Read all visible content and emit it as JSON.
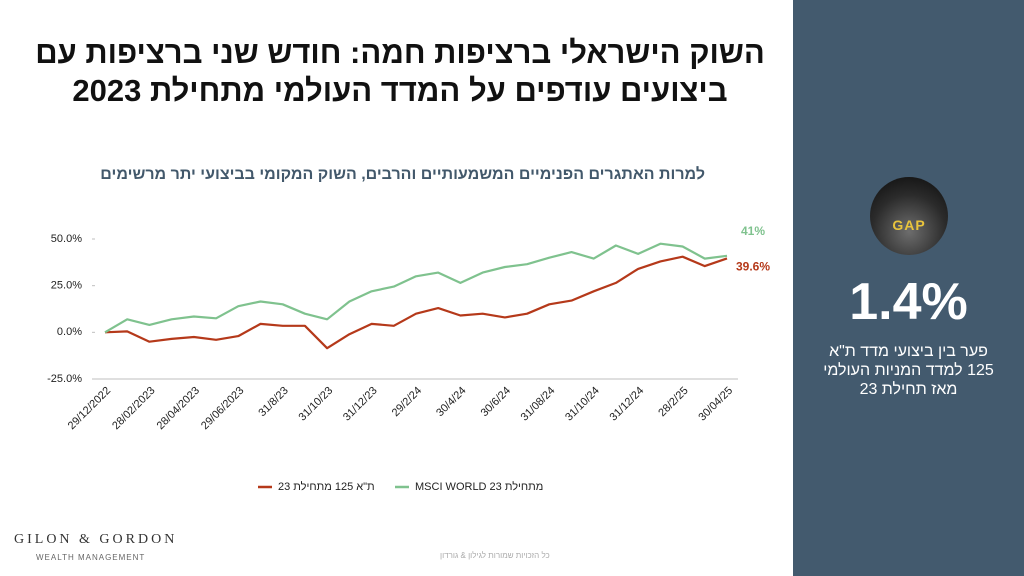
{
  "chart_data": {
    "type": "line",
    "title": "השוק הישראלי ברציפות חמה: חודש שני ברציפות עם ביצועים עודפים על המדד העולמי מתחילת 2023",
    "subtitle": "למרות האתגרים הפנימיים המשמעותיים והרבים, השוק המקומי בביצועי יתר מרשימים",
    "categories": [
      "29/12/2022",
      null,
      "28/02/2023",
      null,
      "28/04/2023",
      null,
      "29/06/2023",
      null,
      "31/8/23",
      null,
      "31/10/23",
      null,
      "31/12/23",
      null,
      "29/2/24",
      null,
      "30/4/24",
      null,
      "30/6/24",
      null,
      "31/08/24",
      null,
      "31/10/24",
      null,
      "31/12/24",
      null,
      "28/2/25",
      null,
      "30/04/25"
    ],
    "series": [
      {
        "name": "ת\"א 125 מתחילת 23",
        "color": "#b5391a",
        "values": [
          0,
          0.5,
          -5,
          -3.5,
          -2.5,
          -4,
          -2,
          4.5,
          3.5,
          3.5,
          -8.5,
          -1,
          4.5,
          3.5,
          10,
          13,
          9,
          10,
          8,
          10,
          15,
          17,
          22,
          26.5,
          34,
          38,
          40.5,
          35.5,
          39.6
        ],
        "value_labels": [
          null,
          null,
          null,
          null,
          null,
          null,
          null,
          null,
          null,
          null,
          null,
          null,
          null,
          null,
          null,
          null,
          null,
          null,
          null,
          null,
          null,
          null,
          null,
          null,
          null,
          null,
          null,
          null,
          "39.6%"
        ]
      },
      {
        "name": "מתחילת MSCI WORLD 23",
        "color": "#7fc28e",
        "values": [
          0,
          7,
          4,
          7,
          8.5,
          7.5,
          14,
          16.5,
          15,
          10,
          7,
          16.5,
          22,
          24.5,
          30,
          32,
          26.5,
          32,
          35,
          36.5,
          40,
          43,
          39.5,
          46.5,
          42,
          47.5,
          46,
          39.5,
          41
        ],
        "value_labels": [
          null,
          null,
          null,
          null,
          null,
          null,
          null,
          null,
          null,
          null,
          null,
          null,
          null,
          null,
          null,
          null,
          null,
          null,
          null,
          null,
          null,
          null,
          null,
          null,
          null,
          null,
          null,
          null,
          "41%"
        ]
      }
    ],
    "ylim": [
      -25,
      50
    ],
    "yticks": [
      {
        "value": -25,
        "label": "-25.0%"
      },
      {
        "value": 0,
        "label": "0.0%"
      },
      {
        "value": 25,
        "label": "25.0%"
      },
      {
        "value": 50,
        "label": "50.0%"
      }
    ],
    "grid": false,
    "legend": "bottom"
  },
  "panel": {
    "image_text": "GAP",
    "value_text": "1.4%",
    "caption": [
      "פער בין ביצועי מדד ת\"א",
      "125 למדד המניות העולמי",
      "מאז תחילת 23"
    ]
  },
  "logo": {
    "name": "GILON & GORDON",
    "tagline": "WEALTH MANAGEMENT"
  },
  "footer": "כל הזכויות שמורות לגילון & גורדון"
}
